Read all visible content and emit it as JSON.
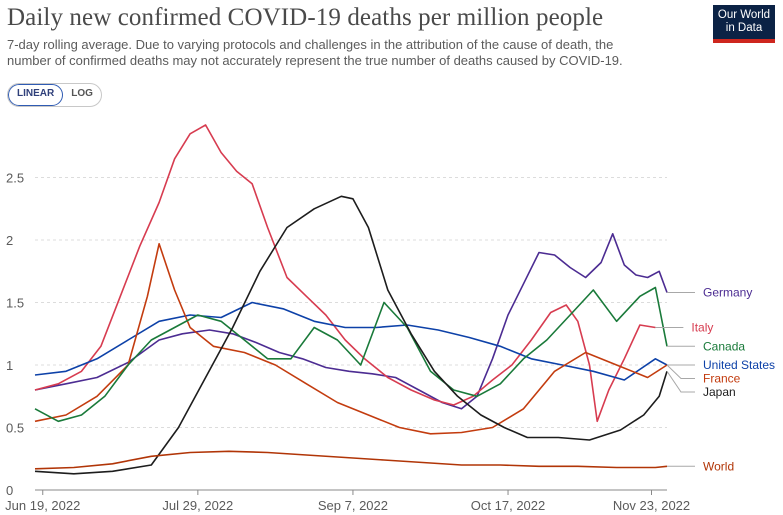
{
  "header": {
    "title": "Daily new confirmed COVID-19 deaths per million people",
    "subtitle": "7-day rolling average. Due to varying protocols and challenges in the attribution of the cause of death, the number of confirmed deaths may not accurately represent the true number of deaths caused by COVID-19.",
    "logo_line1": "Our World",
    "logo_line2": "in Data"
  },
  "scale_toggle": {
    "linear_label": "LINEAR",
    "log_label": "LOG",
    "selected": "LINEAR"
  },
  "chart_data": {
    "type": "line",
    "title": "Daily new confirmed COVID-19 deaths per million people",
    "xlabel": "",
    "ylabel": "",
    "ylim": [
      0,
      3.0
    ],
    "yticks": [
      0,
      0.5,
      1,
      1.5,
      2,
      2.5
    ],
    "ytick_labels": [
      "0",
      "0.5",
      "1",
      "1.5",
      "2",
      "2.5"
    ],
    "xlim": [
      "2022-06-17",
      "2022-11-27"
    ],
    "xticks": [
      "2022-06-19",
      "2022-07-29",
      "2022-09-07",
      "2022-10-17",
      "2022-11-23"
    ],
    "xtick_labels": [
      "Jun 19, 2022",
      "Jul 29, 2022",
      "Sep 7, 2022",
      "Oct 17, 2022",
      "Nov 23, 2022"
    ],
    "grid": "horizontal dashed",
    "legend": "labels at right end of lines",
    "series": [
      {
        "name": "Germany",
        "color": "#4c2c92",
        "x": [
          "2022-06-17",
          "2022-06-25",
          "2022-07-03",
          "2022-07-11",
          "2022-07-19",
          "2022-07-25",
          "2022-08-01",
          "2022-08-07",
          "2022-08-13",
          "2022-08-19",
          "2022-08-25",
          "2022-08-31",
          "2022-09-06",
          "2022-09-12",
          "2022-09-18",
          "2022-09-24",
          "2022-09-30",
          "2022-10-05",
          "2022-10-09",
          "2022-10-13",
          "2022-10-17",
          "2022-10-21",
          "2022-10-25",
          "2022-10-29",
          "2022-11-02",
          "2022-11-06",
          "2022-11-10",
          "2022-11-13",
          "2022-11-16",
          "2022-11-19",
          "2022-11-22",
          "2022-11-25",
          "2022-11-27"
        ],
        "y": [
          0.8,
          0.85,
          0.9,
          1.02,
          1.2,
          1.25,
          1.28,
          1.25,
          1.18,
          1.1,
          1.05,
          0.98,
          0.95,
          0.93,
          0.9,
          0.8,
          0.7,
          0.65,
          0.75,
          1.05,
          1.4,
          1.65,
          1.9,
          1.88,
          1.78,
          1.7,
          1.82,
          2.05,
          1.8,
          1.72,
          1.7,
          1.75,
          1.58
        ]
      },
      {
        "name": "Italy",
        "color": "#d73c50",
        "x": [
          "2022-06-17",
          "2022-06-23",
          "2022-06-29",
          "2022-07-04",
          "2022-07-09",
          "2022-07-14",
          "2022-07-19",
          "2022-07-23",
          "2022-07-27",
          "2022-07-31",
          "2022-08-04",
          "2022-08-08",
          "2022-08-12",
          "2022-08-16",
          "2022-08-21",
          "2022-08-26",
          "2022-08-31",
          "2022-09-05",
          "2022-09-10",
          "2022-09-16",
          "2022-09-22",
          "2022-09-28",
          "2022-10-03",
          "2022-10-08",
          "2022-10-13",
          "2022-10-18",
          "2022-10-23",
          "2022-10-28",
          "2022-11-01",
          "2022-11-04",
          "2022-11-07",
          "2022-11-09",
          "2022-11-12",
          "2022-11-16",
          "2022-11-20",
          "2022-11-24"
        ],
        "y": [
          0.8,
          0.85,
          0.95,
          1.15,
          1.55,
          1.95,
          2.3,
          2.65,
          2.85,
          2.92,
          2.7,
          2.55,
          2.45,
          2.1,
          1.7,
          1.55,
          1.4,
          1.2,
          1.05,
          0.9,
          0.8,
          0.72,
          0.68,
          0.75,
          0.88,
          1.0,
          1.2,
          1.42,
          1.48,
          1.35,
          1.0,
          0.55,
          0.8,
          1.05,
          1.32,
          1.3
        ]
      },
      {
        "name": "United States",
        "color": "#0d41a8",
        "x": [
          "2022-06-17",
          "2022-06-25",
          "2022-07-03",
          "2022-07-11",
          "2022-07-19",
          "2022-07-27",
          "2022-08-04",
          "2022-08-12",
          "2022-08-20",
          "2022-08-28",
          "2022-09-05",
          "2022-09-13",
          "2022-09-21",
          "2022-09-29",
          "2022-10-07",
          "2022-10-15",
          "2022-10-23",
          "2022-10-31",
          "2022-11-08",
          "2022-11-16",
          "2022-11-24",
          "2022-11-27"
        ],
        "y": [
          0.92,
          0.95,
          1.05,
          1.2,
          1.35,
          1.4,
          1.38,
          1.5,
          1.45,
          1.35,
          1.3,
          1.3,
          1.32,
          1.28,
          1.22,
          1.15,
          1.05,
          1.0,
          0.95,
          0.88,
          1.05,
          1.0
        ]
      },
      {
        "name": "France",
        "color": "#c33c0f",
        "x": [
          "2022-06-17",
          "2022-06-25",
          "2022-07-03",
          "2022-07-11",
          "2022-07-16",
          "2022-07-19",
          "2022-07-23",
          "2022-07-27",
          "2022-08-02",
          "2022-08-10",
          "2022-08-18",
          "2022-08-26",
          "2022-09-03",
          "2022-09-11",
          "2022-09-19",
          "2022-09-27",
          "2022-10-05",
          "2022-10-13",
          "2022-10-21",
          "2022-10-29",
          "2022-11-06",
          "2022-11-14",
          "2022-11-22",
          "2022-11-27"
        ],
        "y": [
          0.55,
          0.6,
          0.75,
          1.0,
          1.55,
          1.97,
          1.6,
          1.3,
          1.15,
          1.1,
          1.0,
          0.85,
          0.7,
          0.6,
          0.5,
          0.45,
          0.46,
          0.5,
          0.65,
          0.95,
          1.1,
          1.0,
          0.9,
          1.0
        ]
      },
      {
        "name": "Canada",
        "color": "#1a7a3a",
        "x": [
          "2022-06-17",
          "2022-06-23",
          "2022-06-29",
          "2022-07-05",
          "2022-07-11",
          "2022-07-17",
          "2022-07-23",
          "2022-07-29",
          "2022-08-04",
          "2022-08-10",
          "2022-08-16",
          "2022-08-22",
          "2022-08-28",
          "2022-09-03",
          "2022-09-09",
          "2022-09-15",
          "2022-09-21",
          "2022-09-27",
          "2022-10-03",
          "2022-10-09",
          "2022-10-15",
          "2022-10-21",
          "2022-10-27",
          "2022-11-02",
          "2022-11-08",
          "2022-11-14",
          "2022-11-20",
          "2022-11-24",
          "2022-11-27"
        ],
        "y": [
          0.65,
          0.55,
          0.6,
          0.75,
          1.0,
          1.2,
          1.3,
          1.4,
          1.35,
          1.2,
          1.05,
          1.05,
          1.3,
          1.2,
          1.0,
          1.5,
          1.3,
          0.95,
          0.8,
          0.75,
          0.85,
          1.05,
          1.2,
          1.4,
          1.6,
          1.35,
          1.55,
          1.62,
          1.15
        ]
      },
      {
        "name": "Japan",
        "color": "#1d1d1d",
        "x": [
          "2022-06-17",
          "2022-06-27",
          "2022-07-07",
          "2022-07-17",
          "2022-07-24",
          "2022-07-31",
          "2022-08-07",
          "2022-08-14",
          "2022-08-21",
          "2022-08-28",
          "2022-09-04",
          "2022-09-07",
          "2022-09-11",
          "2022-09-16",
          "2022-09-22",
          "2022-09-28",
          "2022-10-04",
          "2022-10-10",
          "2022-10-16",
          "2022-10-22",
          "2022-10-30",
          "2022-11-07",
          "2022-11-15",
          "2022-11-21",
          "2022-11-25",
          "2022-11-27"
        ],
        "y": [
          0.15,
          0.13,
          0.15,
          0.2,
          0.5,
          0.9,
          1.3,
          1.75,
          2.1,
          2.25,
          2.35,
          2.33,
          2.1,
          1.6,
          1.25,
          0.95,
          0.75,
          0.6,
          0.5,
          0.42,
          0.42,
          0.4,
          0.48,
          0.6,
          0.75,
          0.95
        ]
      },
      {
        "name": "World",
        "color": "#b13507",
        "x": [
          "2022-06-17",
          "2022-06-27",
          "2022-07-07",
          "2022-07-17",
          "2022-07-27",
          "2022-08-06",
          "2022-08-16",
          "2022-08-26",
          "2022-09-05",
          "2022-09-15",
          "2022-09-25",
          "2022-10-05",
          "2022-10-15",
          "2022-10-25",
          "2022-11-04",
          "2022-11-14",
          "2022-11-24",
          "2022-11-27"
        ],
        "y": [
          0.17,
          0.18,
          0.21,
          0.27,
          0.3,
          0.31,
          0.3,
          0.28,
          0.26,
          0.24,
          0.22,
          0.2,
          0.2,
          0.19,
          0.19,
          0.18,
          0.18,
          0.19
        ]
      }
    ]
  }
}
